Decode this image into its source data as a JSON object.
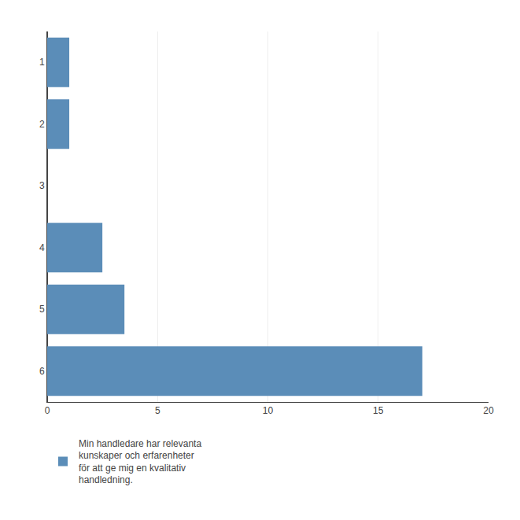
{
  "chart_data": {
    "type": "bar",
    "orientation": "horizontal",
    "categories": [
      "1",
      "2",
      "3",
      "4",
      "5",
      "6"
    ],
    "series": [
      {
        "name": "Min handledare har relevanta\nkunskaper och erfarenheter\nför att ge mig en kvalitativ\nhandledning.",
        "color": "#5B8DB8",
        "values": [
          1,
          1,
          0,
          2.5,
          3.5,
          17
        ]
      }
    ],
    "xlim": [
      0,
      20
    ],
    "xticks": [
      0,
      5,
      10,
      15,
      20
    ],
    "grid": true,
    "legend": "bottom"
  }
}
